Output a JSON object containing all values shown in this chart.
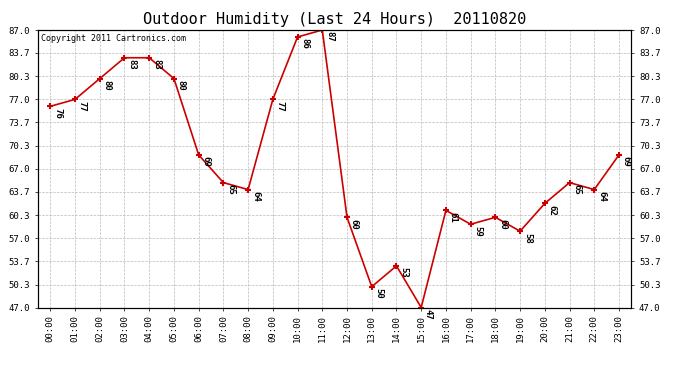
{
  "title": "Outdoor Humidity (Last 24 Hours)  20110820",
  "copyright": "Copyright 2011 Cartronics.com",
  "x_labels": [
    "00:00",
    "01:00",
    "02:00",
    "03:00",
    "04:00",
    "05:00",
    "06:00",
    "07:00",
    "08:00",
    "09:00",
    "10:00",
    "11:00",
    "12:00",
    "13:00",
    "14:00",
    "15:00",
    "16:00",
    "17:00",
    "18:00",
    "19:00",
    "20:00",
    "21:00",
    "22:00",
    "23:00"
  ],
  "y_values": [
    76,
    77,
    80,
    83,
    83,
    80,
    69,
    65,
    64,
    77,
    86,
    87,
    60,
    50,
    53,
    47,
    61,
    59,
    60,
    58,
    62,
    65,
    64,
    69
  ],
  "ylim_min": 47.0,
  "ylim_max": 87.0,
  "y_ticks": [
    47.0,
    50.3,
    53.7,
    57.0,
    60.3,
    63.7,
    67.0,
    70.3,
    73.7,
    77.0,
    80.3,
    83.7,
    87.0
  ],
  "line_color": "#cc0000",
  "marker_color": "#cc0000",
  "bg_color": "#ffffff",
  "grid_color": "#bbbbbb",
  "title_fontsize": 11,
  "label_fontsize": 6.5,
  "annotation_fontsize": 6.5,
  "copyright_fontsize": 6
}
